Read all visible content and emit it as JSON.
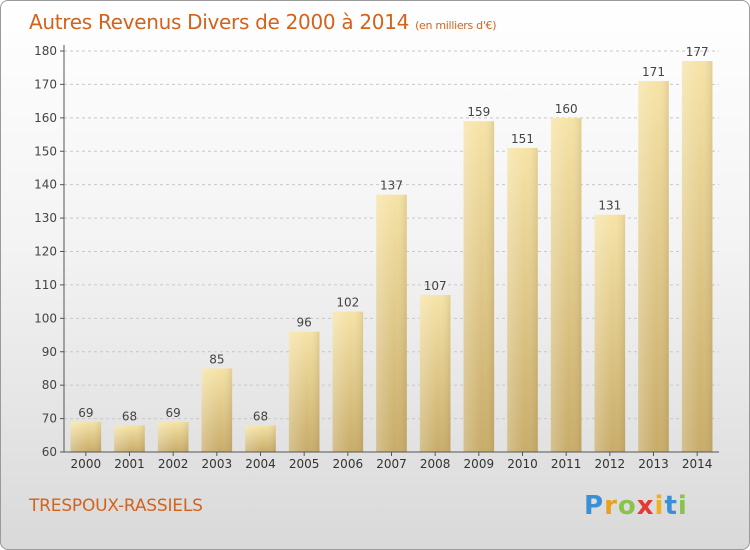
{
  "header": {
    "title": "Autres Revenus Divers de 2000 à 2014",
    "subtitle": "(en milliers d'€)"
  },
  "footer": {
    "city": "TRESPOUX-RASSIELS",
    "brand": "Proxiti"
  },
  "colors": {
    "title": "#d4621a",
    "bar_light": "#f6e3a6",
    "bar_dark": "#c7ab68",
    "axis": "#555555",
    "grid": "#c8c8c8"
  },
  "chart_data": {
    "type": "bar",
    "categories": [
      "2000",
      "2001",
      "2002",
      "2003",
      "2004",
      "2005",
      "2006",
      "2007",
      "2008",
      "2009",
      "2010",
      "2011",
      "2012",
      "2013",
      "2014"
    ],
    "values": [
      69,
      68,
      69,
      85,
      68,
      96,
      102,
      137,
      107,
      159,
      151,
      160,
      131,
      171,
      177
    ],
    "title": "Autres Revenus Divers de 2000 à 2014",
    "xlabel": "",
    "ylabel": "",
    "ylim": [
      60,
      180
    ],
    "yticks": [
      60,
      70,
      80,
      90,
      100,
      110,
      120,
      130,
      140,
      150,
      160,
      170,
      180
    ],
    "grid": true
  }
}
